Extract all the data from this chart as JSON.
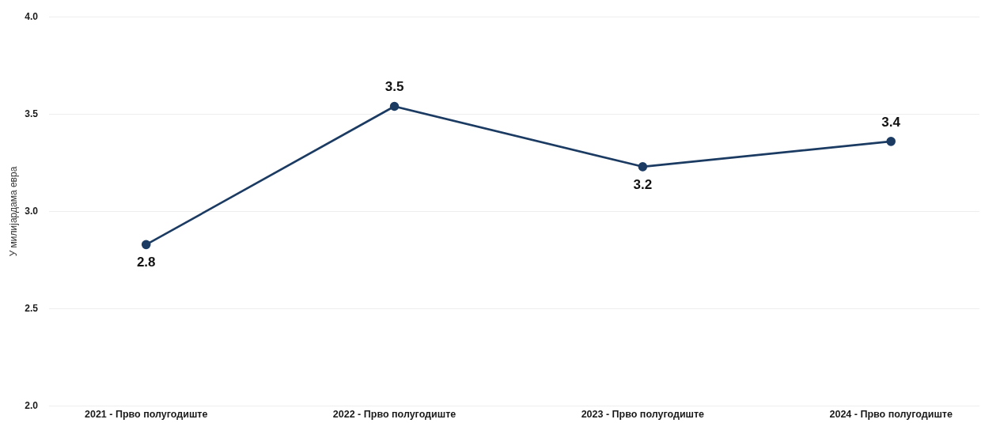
{
  "chart_data": {
    "type": "line",
    "ylabel": "У милијардама евра",
    "categories": [
      "2021 - Прво полугодиште",
      "2022 - Прво полугодиште",
      "2023 - Прво полугодиште",
      "2024 - Прво полугодиште"
    ],
    "values": [
      2.83,
      3.54,
      3.23,
      3.36
    ],
    "value_labels": [
      "2.8",
      "3.5",
      "3.2",
      "3.4"
    ],
    "color": "#1b3b63",
    "ylim": [
      2,
      4
    ],
    "yticks": [
      {
        "value": 2,
        "label": "2.0"
      },
      2.5,
      {
        "value": 3,
        "label": "3.0"
      },
      3.5,
      {
        "value": 4,
        "label": "4.0"
      }
    ],
    "grid": "y",
    "legend": false,
    "marker": "circle",
    "line_style": "solid"
  }
}
